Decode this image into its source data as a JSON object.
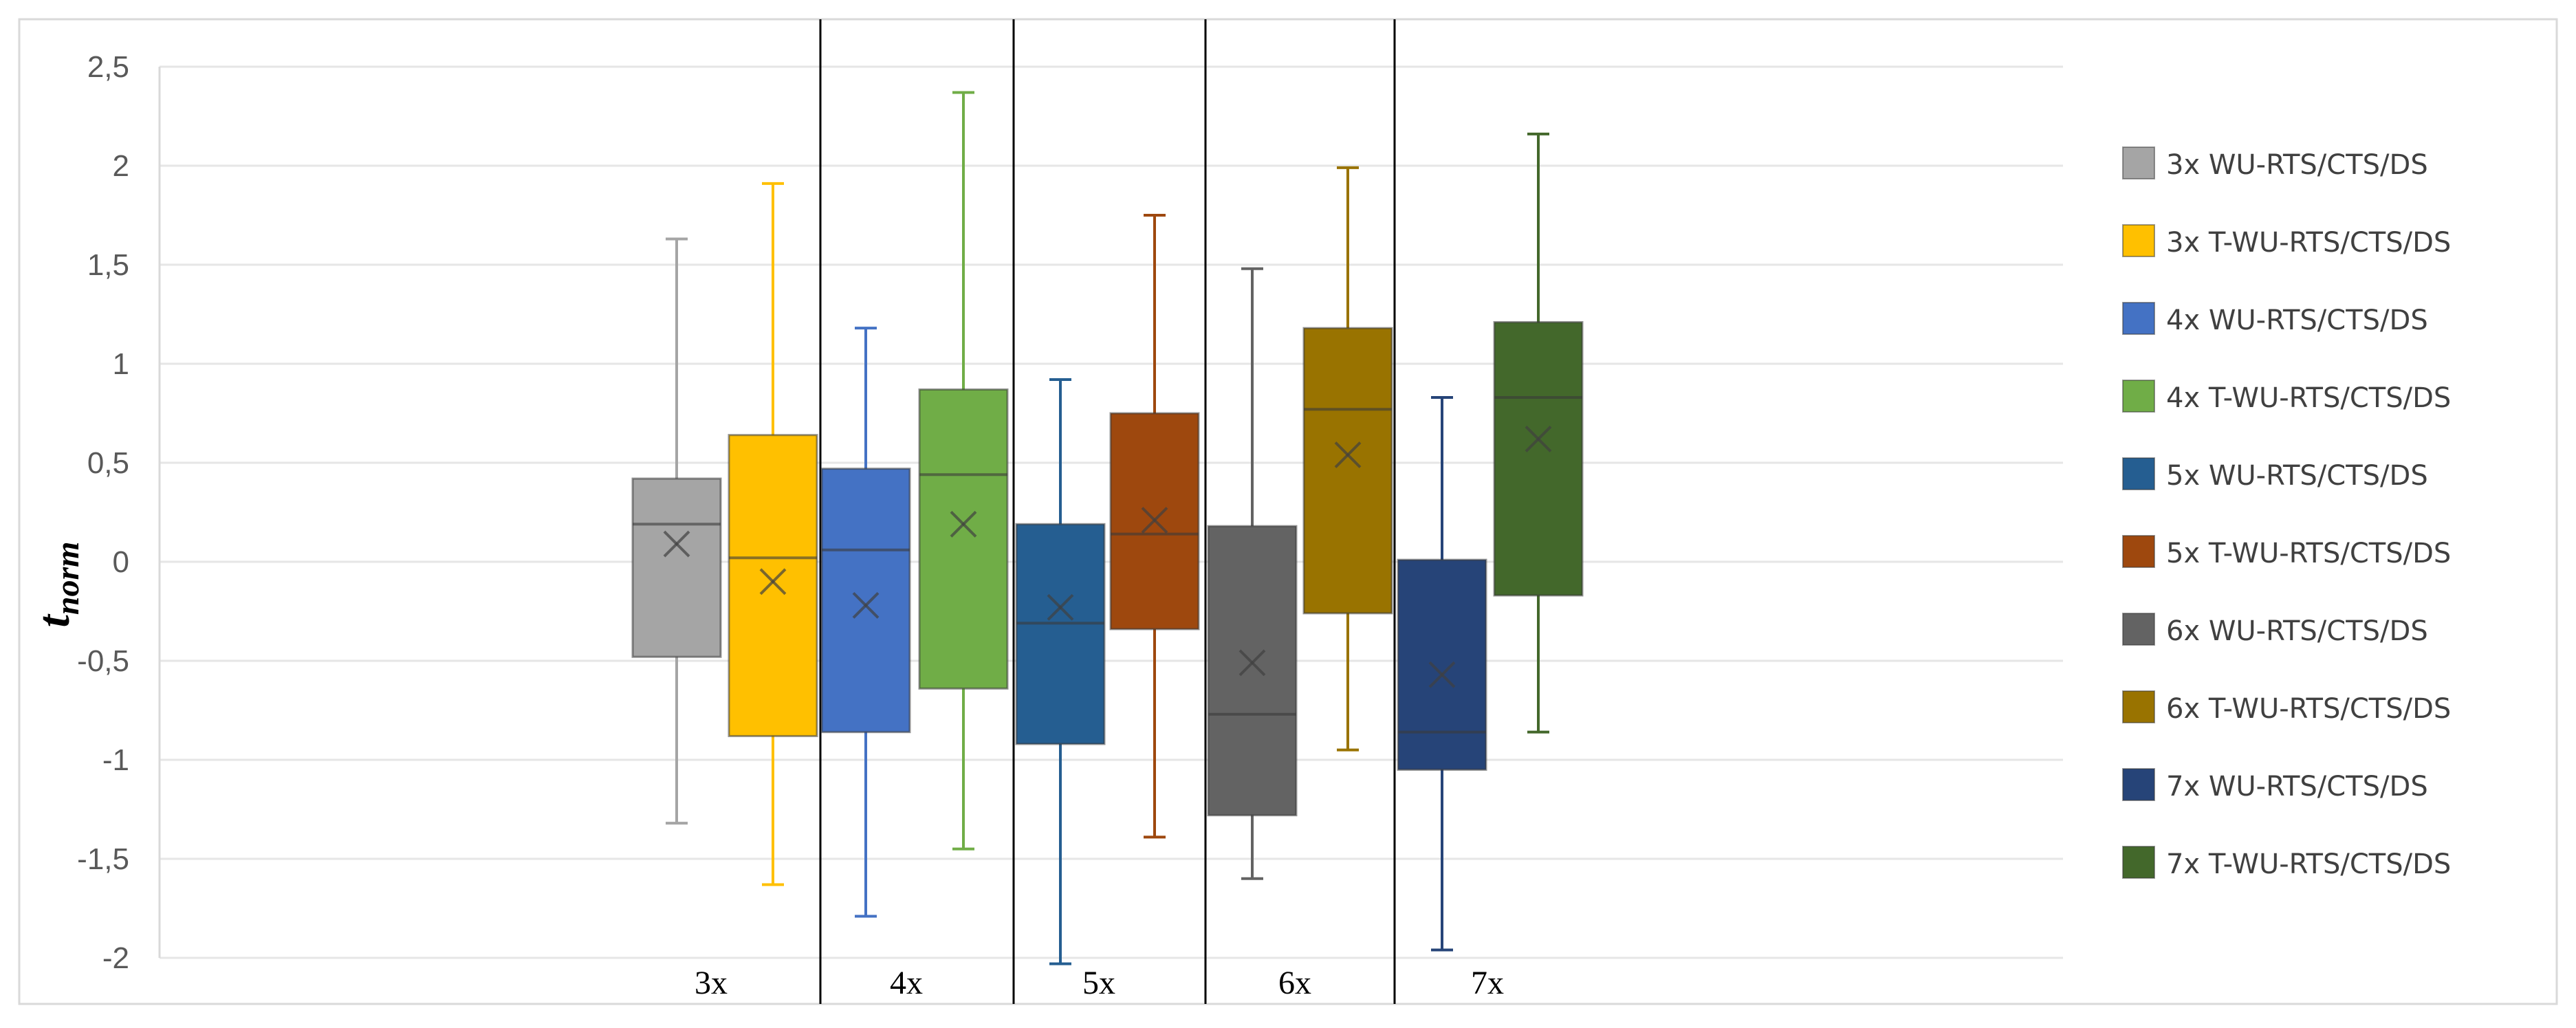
{
  "chart_data": {
    "type": "boxplot",
    "title": "",
    "xlabel": "",
    "ylabel": "t",
    "ylabel_sub": "norm",
    "ylim": [
      -2,
      2.5
    ],
    "yticks": [
      2.5,
      2,
      1.5,
      1,
      0.5,
      0,
      -0.5,
      -1,
      -1.5,
      -2
    ],
    "ytick_labels": [
      "2,5",
      "2",
      "1,5",
      "1",
      "0,5",
      "0",
      "-0,5",
      "-1",
      "-1,5",
      "-2"
    ],
    "grid": true,
    "legend_position": "right",
    "groups": [
      "3x",
      "4x",
      "5x",
      "6x",
      "7x"
    ],
    "series": [
      {
        "name": "3x WU-RTS/CTS/DS",
        "group": "3x",
        "color": "#A5A5A5",
        "min": -1.32,
        "q1": -0.48,
        "median": 0.19,
        "q3": 0.42,
        "max": 1.63,
        "mean": 0.09
      },
      {
        "name": "3x T-WU-RTS/CTS/DS",
        "group": "3x",
        "color": "#FFC000",
        "min": -1.63,
        "q1": -0.88,
        "median": 0.02,
        "q3": 0.64,
        "max": 1.91,
        "mean": -0.1
      },
      {
        "name": "4x WU-RTS/CTS/DS",
        "group": "4x",
        "color": "#4472C4",
        "min": -1.79,
        "q1": -0.86,
        "median": 0.06,
        "q3": 0.47,
        "max": 1.18,
        "mean": -0.22
      },
      {
        "name": "4x T-WU-RTS/CTS/DS",
        "group": "4x",
        "color": "#70AD47",
        "min": -1.45,
        "q1": -0.64,
        "median": 0.44,
        "q3": 0.87,
        "max": 2.37,
        "mean": 0.19
      },
      {
        "name": "5x WU-RTS/CTS/DS",
        "group": "5x",
        "color": "#255E91",
        "min": -2.03,
        "q1": -0.92,
        "median": -0.31,
        "q3": 0.19,
        "max": 0.92,
        "mean": -0.23
      },
      {
        "name": "5x T-WU-RTS/CTS/DS",
        "group": "5x",
        "color": "#9E480E",
        "min": -1.39,
        "q1": -0.34,
        "median": 0.14,
        "q3": 0.75,
        "max": 1.75,
        "mean": 0.21
      },
      {
        "name": "6x WU-RTS/CTS/DS",
        "group": "6x",
        "color": "#636363",
        "min": -1.6,
        "q1": -1.28,
        "median": -0.77,
        "q3": 0.18,
        "max": 1.48,
        "mean": -0.51
      },
      {
        "name": "6x T-WU-RTS/CTS/DS",
        "group": "6x",
        "color": "#997300",
        "min": -0.95,
        "q1": -0.26,
        "median": 0.77,
        "q3": 1.18,
        "max": 1.99,
        "mean": 0.54
      },
      {
        "name": "7x WU-RTS/CTS/DS",
        "group": "7x",
        "color": "#264478",
        "min": -1.96,
        "q1": -1.05,
        "median": -0.86,
        "q3": 0.01,
        "max": 0.83,
        "mean": -0.57
      },
      {
        "name": "7x T-WU-RTS/CTS/DS",
        "group": "7x",
        "color": "#43682B",
        "min": -0.86,
        "q1": -0.17,
        "median": 0.83,
        "q3": 1.21,
        "max": 2.16,
        "mean": 0.62
      }
    ]
  }
}
